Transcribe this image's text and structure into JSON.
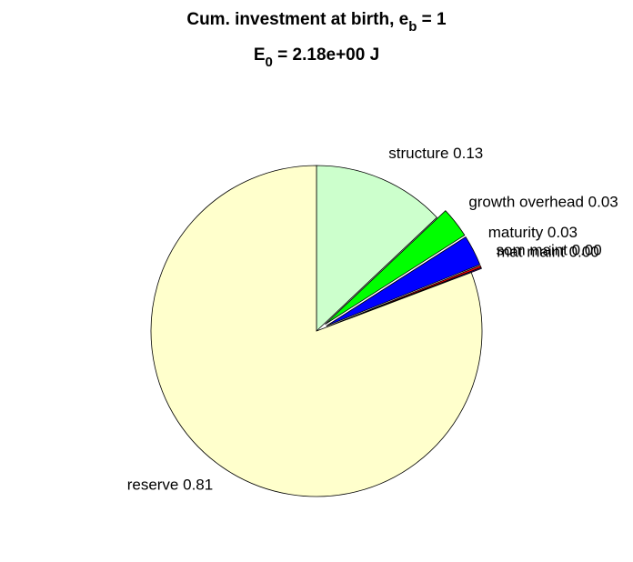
{
  "chart_data": {
    "type": "pie",
    "title": [
      {
        "text": "Cum. investment at birth, e"
      },
      {
        "text": "b",
        "sub": true
      },
      {
        "text": " = 1"
      }
    ],
    "subtitle": [
      {
        "text": "E"
      },
      {
        "text": "0",
        "sub": true
      },
      {
        "text": " = 2.18e+00 J"
      }
    ],
    "categories": [
      "structure",
      "growth overhead",
      "maturity",
      "som maint",
      "mat maint",
      "reserve"
    ],
    "values": [
      0.13,
      0.03,
      0.03,
      0.002,
      0.001,
      0.81
    ],
    "value_labels": [
      "structure 0.13",
      "growth overhead 0.03",
      "maturity 0.03",
      "som maint 0.00",
      "mat maint 0.00",
      "reserve 0.81"
    ],
    "colors": [
      "#ccffcc",
      "#00ff00",
      "#0000ff",
      "#ff0000",
      "#8000ff",
      "#ffffcc"
    ],
    "explode": [
      false,
      true,
      true,
      true,
      true,
      false
    ]
  }
}
